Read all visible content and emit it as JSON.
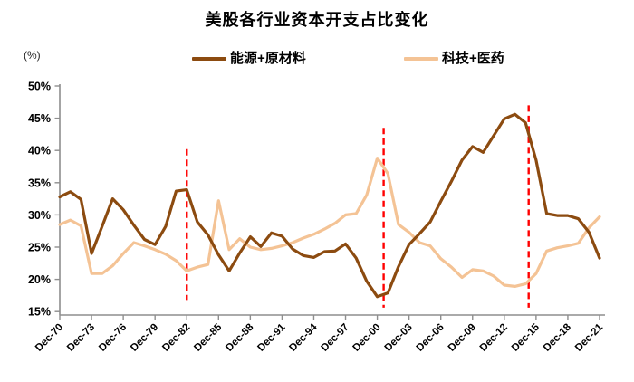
{
  "title": "美股各行业资本开支占比变化",
  "unit_label": "(%)",
  "legend": [
    {
      "label": "能源+原材料",
      "color": "#8c4b10"
    },
    {
      "label": "科技+医药",
      "color": "#f4c395"
    }
  ],
  "chart_data": {
    "type": "line",
    "x_count": 52,
    "x_start": "Dec-70",
    "x_end": "Dec-21",
    "tick_step": 3,
    "tick_labels": [
      "Dec-70",
      "Dec-73",
      "Dec-76",
      "Dec-79",
      "Dec-82",
      "Dec-85",
      "Dec-88",
      "Dec-91",
      "Dec-94",
      "Dec-97",
      "Dec-00",
      "Dec-03",
      "Dec-06",
      "Dec-09",
      "Dec-12",
      "Dec-15",
      "Dec-18",
      "Dec-21"
    ],
    "ylim": [
      15,
      50
    ],
    "ytick_labels": [
      "50%",
      "45%",
      "40%",
      "35%",
      "30%",
      "25%",
      "20%",
      "15%"
    ],
    "ytick_values": [
      50,
      45,
      40,
      35,
      30,
      25,
      20,
      15
    ],
    "grid": false,
    "legend_position": "top",
    "axis_color": "#8e8e8e",
    "series": [
      {
        "name": "科技+医药",
        "color": "#f4c395",
        "values": [
          28.5,
          29.2,
          28.3,
          20.9,
          20.9,
          22.1,
          24.0,
          25.7,
          25.2,
          24.6,
          23.9,
          22.9,
          21.3,
          21.9,
          22.3,
          32.2,
          24.6,
          26.3,
          25.0,
          24.6,
          24.8,
          25.2,
          25.7,
          26.4,
          27.0,
          27.8,
          28.7,
          30.0,
          30.2,
          33.1,
          38.8,
          36.4,
          28.5,
          27.3,
          25.7,
          25.2,
          23.2,
          21.9,
          20.3,
          21.5,
          21.3,
          20.5,
          19.1,
          18.9,
          19.3,
          20.9,
          24.4,
          24.9,
          25.2,
          25.6,
          28.0,
          29.7
        ]
      },
      {
        "name": "能源+原材料",
        "color": "#8c4b10",
        "values": [
          32.8,
          33.6,
          32.4,
          24.0,
          28.2,
          32.5,
          30.8,
          28.4,
          26.2,
          25.4,
          28.2,
          33.7,
          33.9,
          28.9,
          26.9,
          23.8,
          21.3,
          24.1,
          26.6,
          25.1,
          27.2,
          26.7,
          24.7,
          23.7,
          23.4,
          24.3,
          24.4,
          25.5,
          23.3,
          19.7,
          17.3,
          17.9,
          22.0,
          25.4,
          27.1,
          28.9,
          32.1,
          35.2,
          38.5,
          40.6,
          39.7,
          42.3,
          44.9,
          45.6,
          44.3,
          38.5,
          30.2,
          29.9,
          29.9,
          29.4,
          27.3,
          23.3
        ]
      }
    ],
    "vlines": [
      {
        "x_index": 12.0,
        "y_from": 16.8,
        "y_to": 40.2,
        "color": "#ff0000",
        "style": "dashed"
      },
      {
        "x_index": 30.6,
        "y_from": 15.6,
        "y_to": 43.5,
        "color": "#ff0000",
        "style": "dashed"
      },
      {
        "x_index": 44.3,
        "y_from": 15.6,
        "y_to": 47.0,
        "color": "#ff0000",
        "style": "dashed"
      }
    ]
  }
}
